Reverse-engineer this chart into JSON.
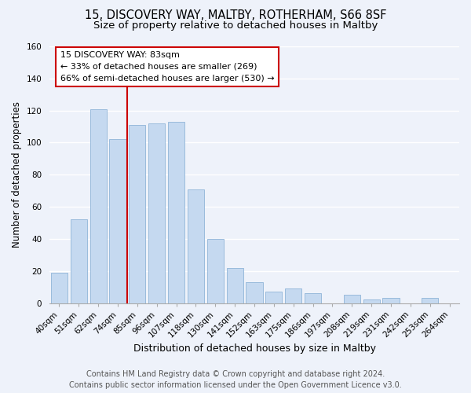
{
  "title": "15, DISCOVERY WAY, MALTBY, ROTHERHAM, S66 8SF",
  "subtitle": "Size of property relative to detached houses in Maltby",
  "xlabel": "Distribution of detached houses by size in Maltby",
  "ylabel": "Number of detached properties",
  "bar_labels": [
    "40sqm",
    "51sqm",
    "62sqm",
    "74sqm",
    "85sqm",
    "96sqm",
    "107sqm",
    "118sqm",
    "130sqm",
    "141sqm",
    "152sqm",
    "163sqm",
    "175sqm",
    "186sqm",
    "197sqm",
    "208sqm",
    "219sqm",
    "231sqm",
    "242sqm",
    "253sqm",
    "264sqm"
  ],
  "bar_heights": [
    19,
    52,
    121,
    102,
    111,
    112,
    113,
    71,
    40,
    22,
    13,
    7,
    9,
    6,
    0,
    5,
    2,
    3,
    0,
    3,
    0
  ],
  "bar_color": "#c5d9f0",
  "bar_edge_color": "#8fb4d8",
  "vline_color": "#cc0000",
  "vline_x": 3.5,
  "annotation_title": "15 DISCOVERY WAY: 83sqm",
  "annotation_line1": "← 33% of detached houses are smaller (269)",
  "annotation_line2": "66% of semi-detached houses are larger (530) →",
  "annotation_box_color": "#ffffff",
  "annotation_box_edge_color": "#cc0000",
  "ylim": [
    0,
    160
  ],
  "yticks": [
    0,
    20,
    40,
    60,
    80,
    100,
    120,
    140,
    160
  ],
  "footer1": "Contains HM Land Registry data © Crown copyright and database right 2024.",
  "footer2": "Contains public sector information licensed under the Open Government Licence v3.0.",
  "background_color": "#eef2fa",
  "grid_color": "#ffffff",
  "title_fontsize": 10.5,
  "subtitle_fontsize": 9.5,
  "xlabel_fontsize": 9,
  "ylabel_fontsize": 8.5,
  "tick_fontsize": 7.5,
  "annotation_fontsize": 8,
  "footer_fontsize": 7
}
